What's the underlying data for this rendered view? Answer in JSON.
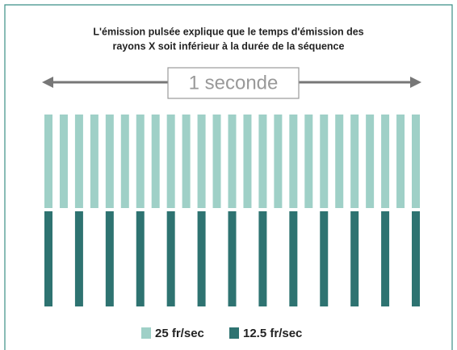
{
  "title": {
    "line1": "L'émission pulsée explique que le temps d'émission des",
    "line2": "rayons X soit inférieur à la durée de la séquence"
  },
  "duration_label": "1 seconde",
  "legend": [
    {
      "label": "25 fr/sec"
    },
    {
      "label": "12.5 fr/sec"
    }
  ]
}
